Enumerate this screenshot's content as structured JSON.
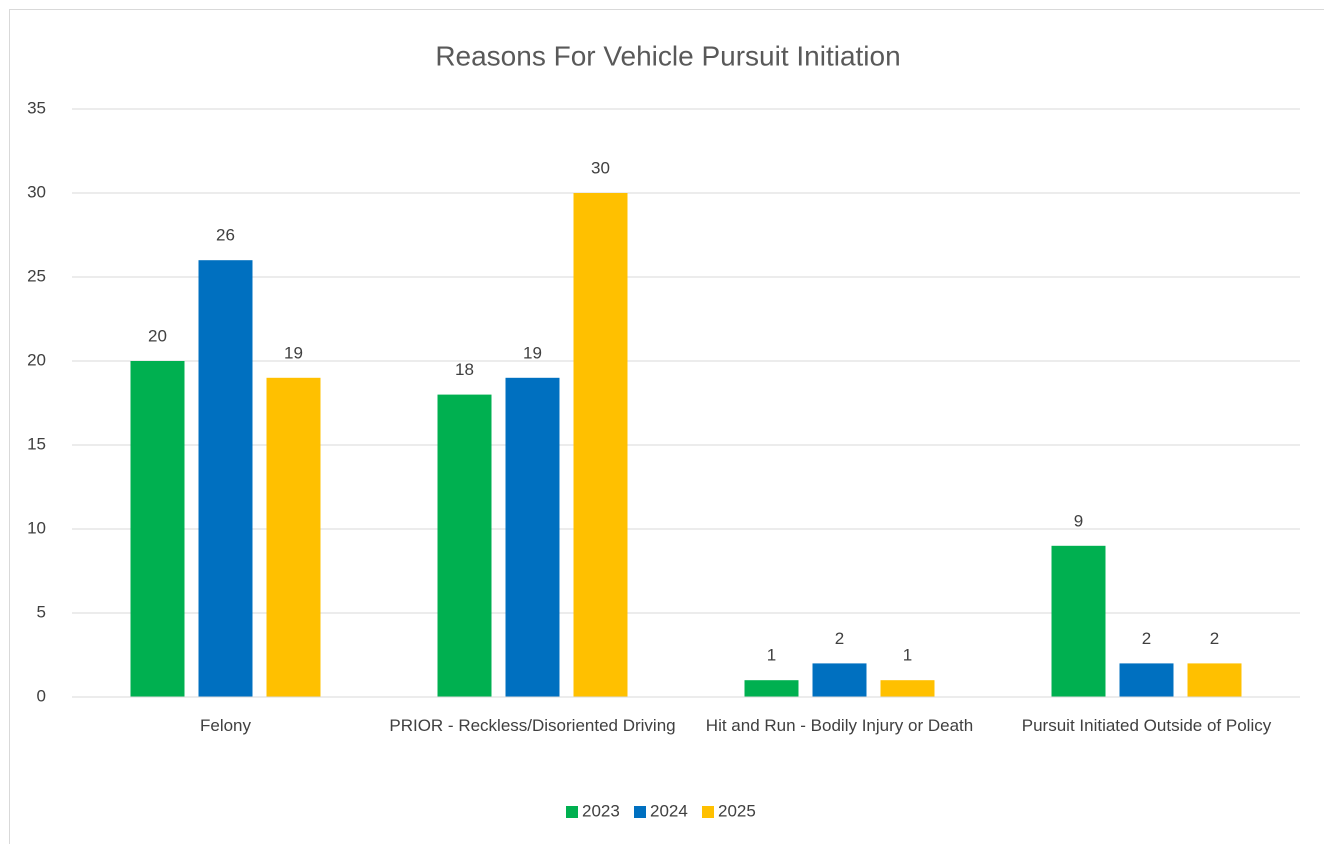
{
  "chart_data": {
    "type": "bar",
    "title": "Reasons For Vehicle Pursuit Initiation",
    "categories": [
      "Felony",
      "PRIOR - Reckless/Disoriented Driving",
      "Hit and Run - Bodily Injury or Death",
      "Pursuit Initiated Outside of Policy"
    ],
    "series": [
      {
        "name": "2023",
        "color": "#00b050",
        "values": [
          20,
          18,
          1,
          9
        ]
      },
      {
        "name": "2024",
        "color": "#0070c0",
        "values": [
          26,
          19,
          2,
          2
        ]
      },
      {
        "name": "2025",
        "color": "#ffc000",
        "values": [
          19,
          30,
          1,
          2
        ]
      }
    ],
    "ylim": [
      0,
      35
    ],
    "yticks": [
      0,
      5,
      10,
      15,
      20,
      25,
      30,
      35
    ],
    "grid": true,
    "legend": "bottom"
  }
}
